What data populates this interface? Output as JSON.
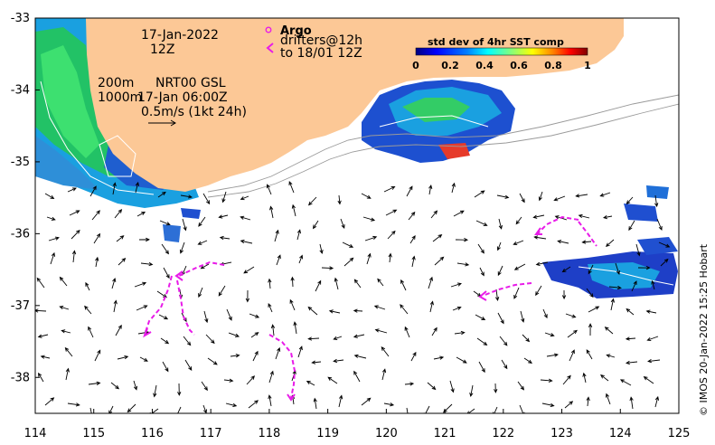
{
  "map": {
    "info": {
      "date": "17-Jan-2022",
      "hour": "12Z",
      "contours": "200m",
      "contours2": "1000m",
      "model": "NRT00 GSL",
      "model_time": "17-Jan 06:00Z",
      "scale": "0.5m/s (1kt 24h)"
    },
    "legend": {
      "argo_label": "Argo",
      "drifters_label": "drifters@12h",
      "drifters_label2": "to 18/01 12Z",
      "argo_color": "#e81be8",
      "drifter_color": "#e81be8"
    },
    "colorbar": {
      "title": "std dev of 4hr SST comp",
      "ticks": [
        "0",
        "0.2",
        "0.4",
        "0.6",
        "0.8",
        "1"
      ],
      "colors": [
        "#00007f",
        "#0000ff",
        "#0080ff",
        "#00ffff",
        "#80ff80",
        "#ffff00",
        "#ff8000",
        "#ff0000",
        "#7f0000"
      ]
    },
    "axes": {
      "x_ticks": [
        "114",
        "115",
        "116",
        "117",
        "118",
        "119",
        "120",
        "121",
        "122",
        "123",
        "124",
        "125"
      ],
      "y_ticks": [
        "-33",
        "-34",
        "-35",
        "-36",
        "-37",
        "-38"
      ],
      "lon_range": [
        114,
        125
      ],
      "lat_range": [
        -38.5,
        -33
      ]
    },
    "land_color": "#fcc896",
    "credit": "© IMOS 20-Jan-2022 15:25 Hobart"
  }
}
